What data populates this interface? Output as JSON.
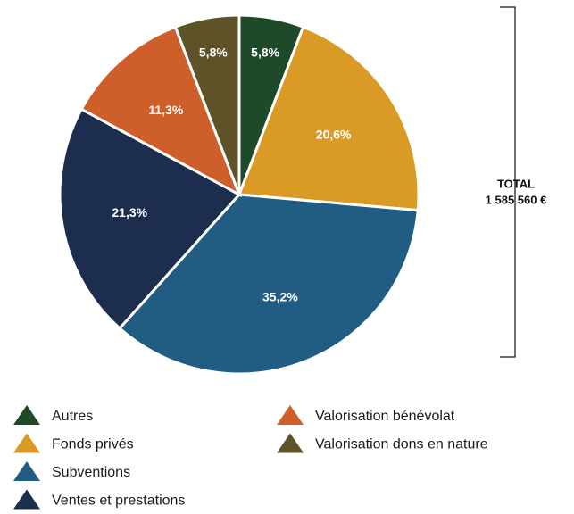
{
  "chart_data": {
    "type": "pie",
    "categories": [
      "Autres",
      "Fonds privés",
      "Subventions",
      "Ventes et prestations",
      "Valorisation bénévolat",
      "Valorisation dons en nature"
    ],
    "values": [
      5.8,
      20.6,
      35.2,
      21.3,
      11.3,
      5.8
    ],
    "value_labels": [
      "5,8%",
      "20,6%",
      "35,2%",
      "21,3%",
      "11,3%",
      "5,8%"
    ],
    "colors": [
      "#1e4a2a",
      "#d99a26",
      "#215d82",
      "#1c2d4e",
      "#cf5f2a",
      "#5e5228"
    ],
    "total_label": "TOTAL",
    "total_value": "1 585 560 €"
  }
}
